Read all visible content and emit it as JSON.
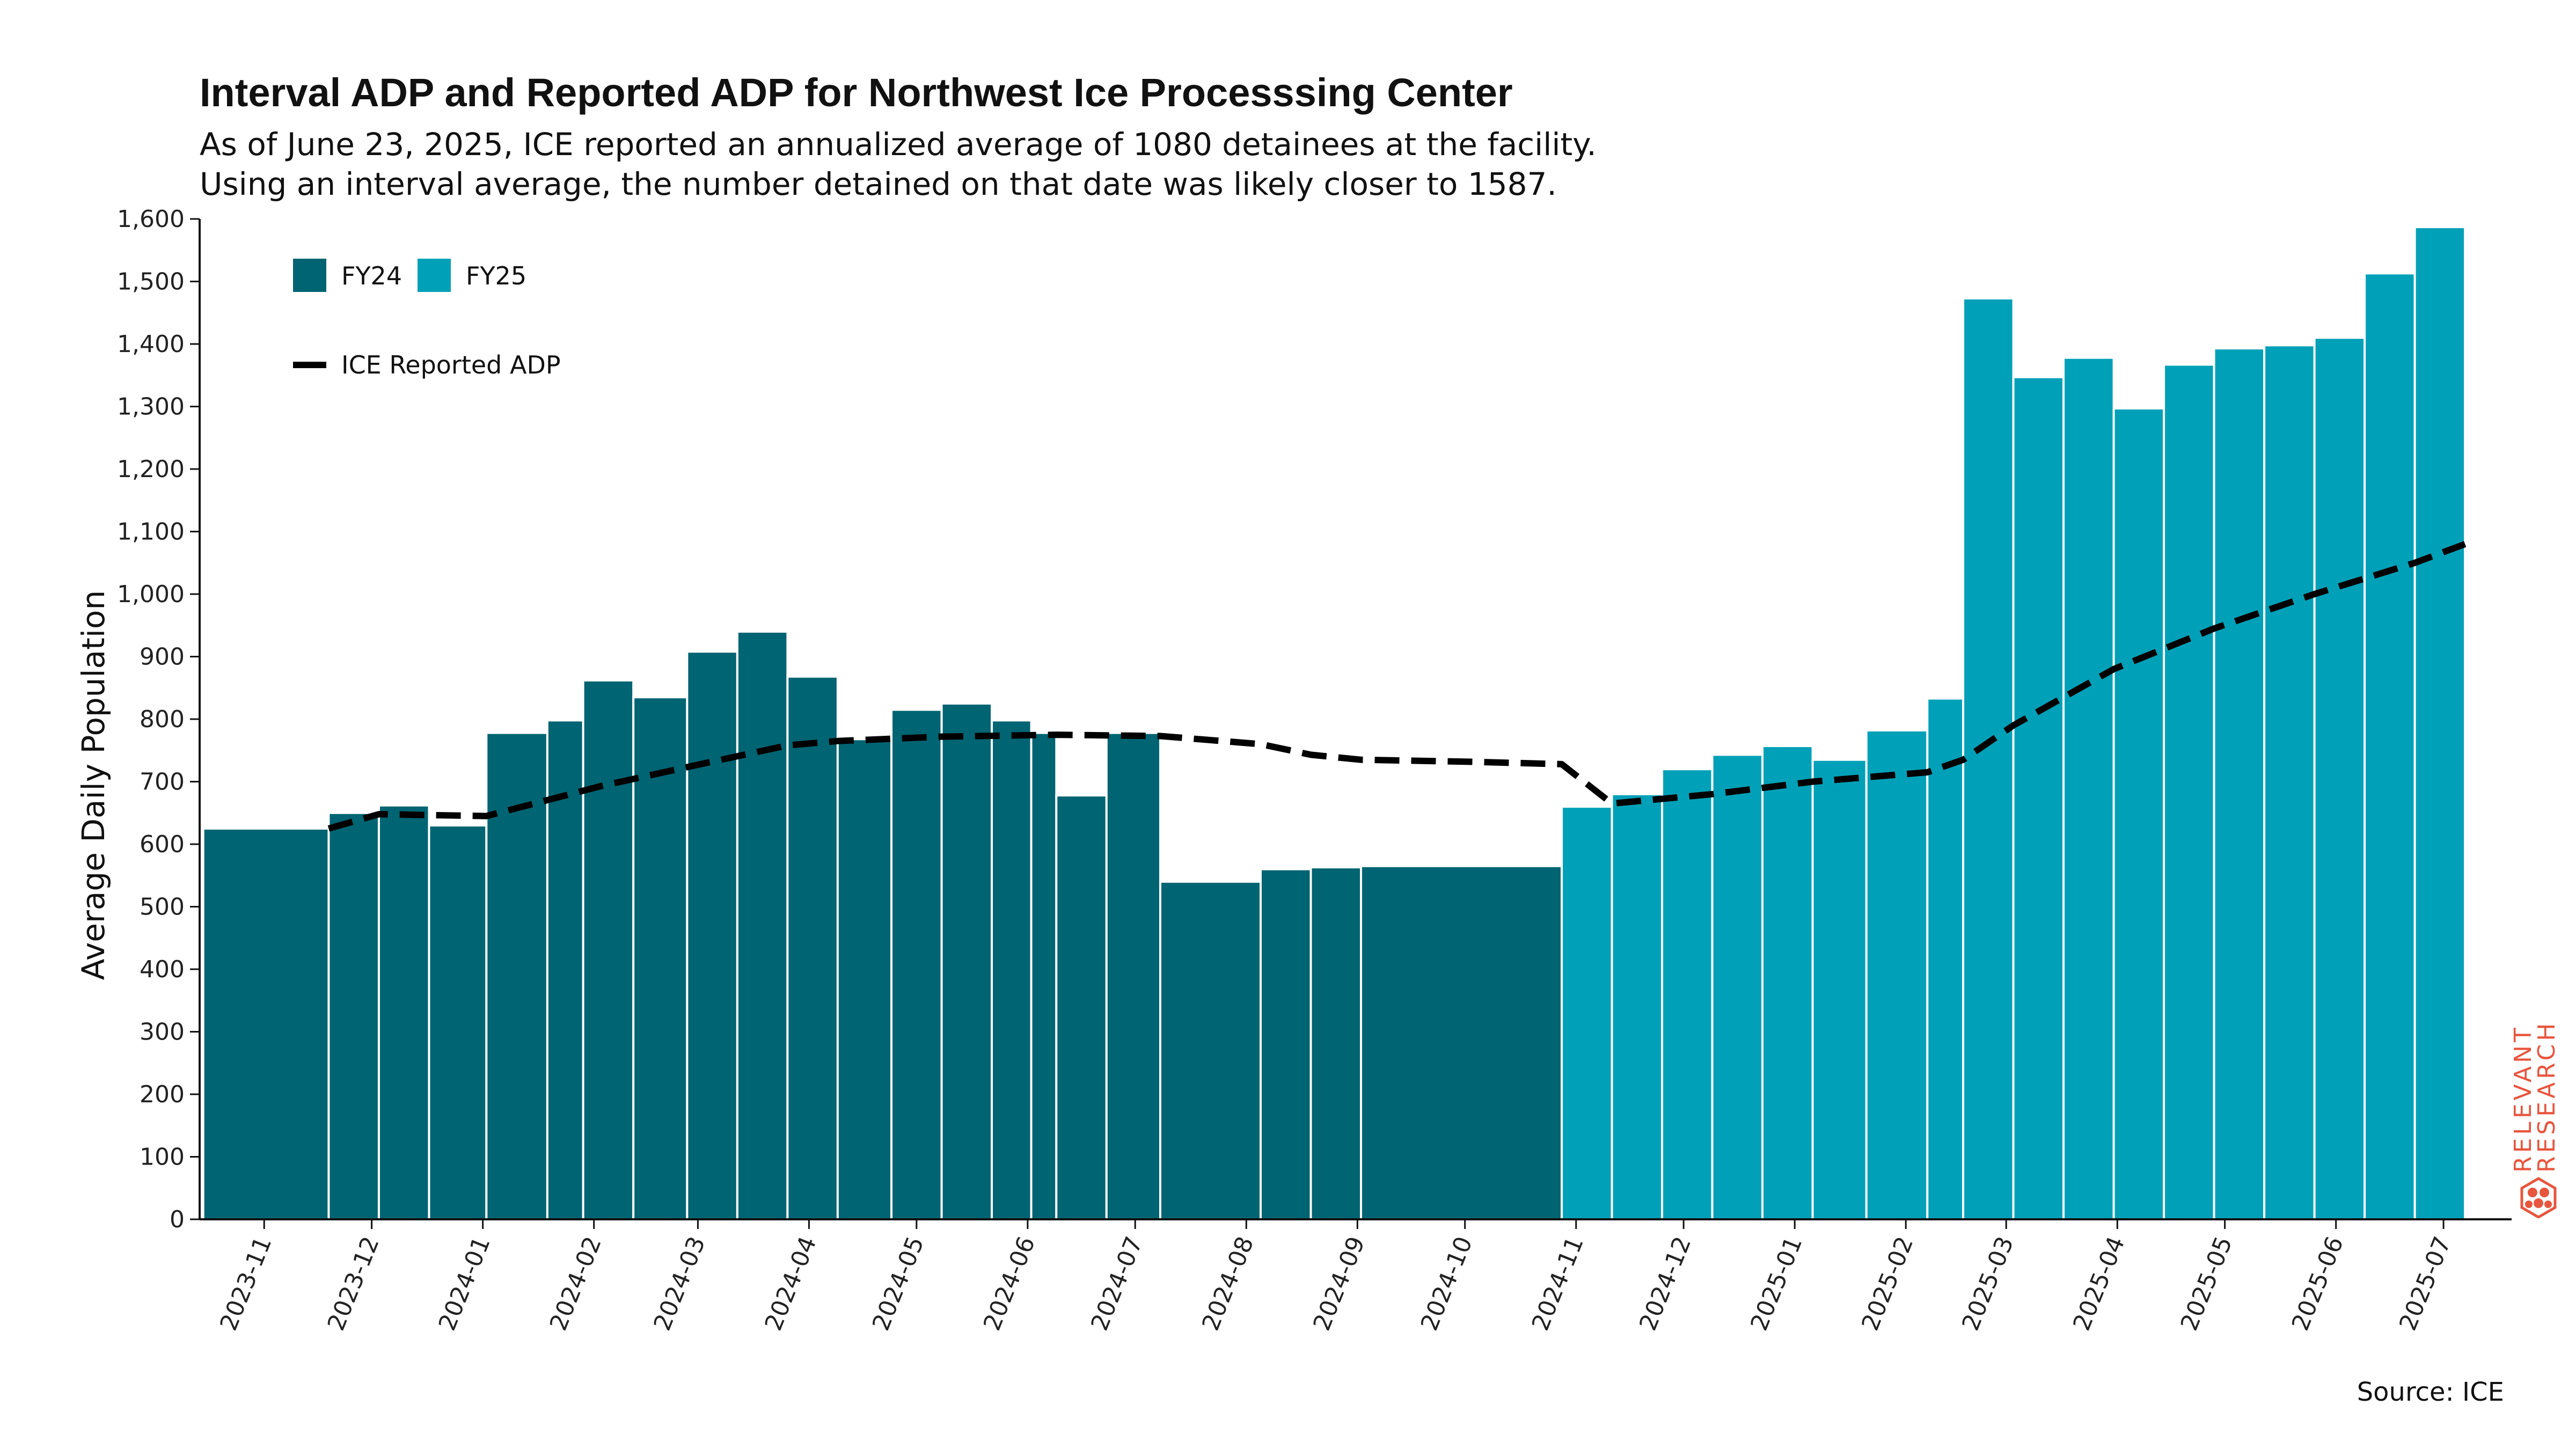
{
  "title": "Interval ADP and Reported ADP for Northwest Ice Processsing Center",
  "subtitle_line1": "As of June 23, 2025, ICE reported an annualized average of 1080 detainees at the facility.",
  "subtitle_line2": "Using an interval average, the number detained on that date was likely closer to 1587.",
  "source": "Source: ICE",
  "brand": {
    "line1": "RELEVANT",
    "line2": "RESEARCH",
    "color": "#e8553e"
  },
  "chart_data": {
    "type": "bar",
    "title": "Interval ADP and Reported ADP for Northwest Ice Processsing Center",
    "ylabel": "Average Daily Population",
    "xlabel": "",
    "ylim": [
      0,
      1600
    ],
    "yticks": [
      0,
      100,
      200,
      300,
      400,
      500,
      600,
      700,
      800,
      900,
      1000,
      1100,
      1200,
      1300,
      1400,
      1500,
      1600
    ],
    "xlim": [
      "2023-10-14",
      "2025-07-20"
    ],
    "xtick_labels": [
      "2023-11",
      "2023-12",
      "2024-01",
      "2024-02",
      "2024-03",
      "2024-04",
      "2024-05",
      "2024-06",
      "2024-07",
      "2024-08",
      "2024-09",
      "2024-10",
      "2024-11",
      "2024-12",
      "2025-01",
      "2025-02",
      "2025-03",
      "2025-04",
      "2025-05",
      "2025-06",
      "2025-07"
    ],
    "legend": {
      "placement": "top-left",
      "entries": [
        "FY24",
        "FY25",
        "ICE Reported ADP"
      ]
    },
    "grid": false,
    "colors": {
      "FY24": "#006472",
      "FY25": "#00a1b8",
      "line": "#000000"
    },
    "series": [
      {
        "name": "FY24",
        "bars": [
          {
            "start": "2023-10-15",
            "end": "2023-11-19",
            "value": 625
          },
          {
            "start": "2023-11-19",
            "end": "2023-12-03",
            "value": 650
          },
          {
            "start": "2023-12-03",
            "end": "2023-12-17",
            "value": 662
          },
          {
            "start": "2023-12-17",
            "end": "2024-01-02",
            "value": 630
          },
          {
            "start": "2024-01-02",
            "end": "2024-01-19",
            "value": 778
          },
          {
            "start": "2024-01-19",
            "end": "2024-01-29",
            "value": 798
          },
          {
            "start": "2024-01-29",
            "end": "2024-02-12",
            "value": 862
          },
          {
            "start": "2024-02-12",
            "end": "2024-02-27",
            "value": 835
          },
          {
            "start": "2024-02-27",
            "end": "2024-03-12",
            "value": 908
          },
          {
            "start": "2024-03-12",
            "end": "2024-03-26",
            "value": 940
          },
          {
            "start": "2024-03-26",
            "end": "2024-04-09",
            "value": 868
          },
          {
            "start": "2024-04-09",
            "end": "2024-04-24",
            "value": 768
          },
          {
            "start": "2024-04-24",
            "end": "2024-05-08",
            "value": 815
          },
          {
            "start": "2024-05-08",
            "end": "2024-05-22",
            "value": 825
          },
          {
            "start": "2024-05-22",
            "end": "2024-06-02",
            "value": 798
          },
          {
            "start": "2024-06-02",
            "end": "2024-06-09",
            "value": 778
          },
          {
            "start": "2024-06-09",
            "end": "2024-06-23",
            "value": 678
          },
          {
            "start": "2024-06-23",
            "end": "2024-07-08",
            "value": 778
          },
          {
            "start": "2024-07-08",
            "end": "2024-08-05",
            "value": 540
          },
          {
            "start": "2024-08-05",
            "end": "2024-08-19",
            "value": 560
          },
          {
            "start": "2024-08-19",
            "end": "2024-09-02",
            "value": 563
          },
          {
            "start": "2024-09-02",
            "end": "2024-10-28",
            "value": 565
          }
        ]
      },
      {
        "name": "FY25",
        "bars": [
          {
            "start": "2024-10-28",
            "end": "2024-11-11",
            "value": 660
          },
          {
            "start": "2024-11-11",
            "end": "2024-11-25",
            "value": 680
          },
          {
            "start": "2024-11-25",
            "end": "2024-12-09",
            "value": 720
          },
          {
            "start": "2024-12-09",
            "end": "2024-12-23",
            "value": 743
          },
          {
            "start": "2024-12-23",
            "end": "2025-01-06",
            "value": 757
          },
          {
            "start": "2025-01-06",
            "end": "2025-01-21",
            "value": 735
          },
          {
            "start": "2025-01-21",
            "end": "2025-02-07",
            "value": 782
          },
          {
            "start": "2025-02-07",
            "end": "2025-02-17",
            "value": 833
          },
          {
            "start": "2025-02-17",
            "end": "2025-03-03",
            "value": 1473
          },
          {
            "start": "2025-03-03",
            "end": "2025-03-17",
            "value": 1347
          },
          {
            "start": "2025-03-17",
            "end": "2025-03-31",
            "value": 1378
          },
          {
            "start": "2025-03-31",
            "end": "2025-04-14",
            "value": 1297
          },
          {
            "start": "2025-04-14",
            "end": "2025-04-28",
            "value": 1367
          },
          {
            "start": "2025-04-28",
            "end": "2025-05-12",
            "value": 1393
          },
          {
            "start": "2025-05-12",
            "end": "2025-05-26",
            "value": 1398
          },
          {
            "start": "2025-05-26",
            "end": "2025-06-09",
            "value": 1410
          },
          {
            "start": "2025-06-09",
            "end": "2025-06-23",
            "value": 1513
          },
          {
            "start": "2025-06-23",
            "end": "2025-07-07",
            "value": 1587
          }
        ]
      },
      {
        "name": "ICE Reported ADP",
        "type": "line",
        "style": "dashed",
        "points": [
          {
            "date": "2023-11-19",
            "value": 625
          },
          {
            "date": "2023-12-03",
            "value": 648
          },
          {
            "date": "2024-01-02",
            "value": 645
          },
          {
            "date": "2024-02-03",
            "value": 693
          },
          {
            "date": "2024-03-01",
            "value": 727
          },
          {
            "date": "2024-03-26",
            "value": 758
          },
          {
            "date": "2024-04-09",
            "value": 765
          },
          {
            "date": "2024-05-08",
            "value": 772
          },
          {
            "date": "2024-06-09",
            "value": 775
          },
          {
            "date": "2024-07-08",
            "value": 773
          },
          {
            "date": "2024-08-05",
            "value": 760
          },
          {
            "date": "2024-08-19",
            "value": 743
          },
          {
            "date": "2024-09-02",
            "value": 735
          },
          {
            "date": "2024-10-01",
            "value": 732
          },
          {
            "date": "2024-10-28",
            "value": 728
          },
          {
            "date": "2024-11-11",
            "value": 665
          },
          {
            "date": "2024-12-09",
            "value": 680
          },
          {
            "date": "2025-01-06",
            "value": 700
          },
          {
            "date": "2025-02-07",
            "value": 715
          },
          {
            "date": "2025-02-17",
            "value": 735
          },
          {
            "date": "2025-03-03",
            "value": 790
          },
          {
            "date": "2025-03-31",
            "value": 880
          },
          {
            "date": "2025-04-28",
            "value": 945
          },
          {
            "date": "2025-05-26",
            "value": 1000
          },
          {
            "date": "2025-06-23",
            "value": 1050
          },
          {
            "date": "2025-07-07",
            "value": 1080
          }
        ]
      }
    ]
  }
}
